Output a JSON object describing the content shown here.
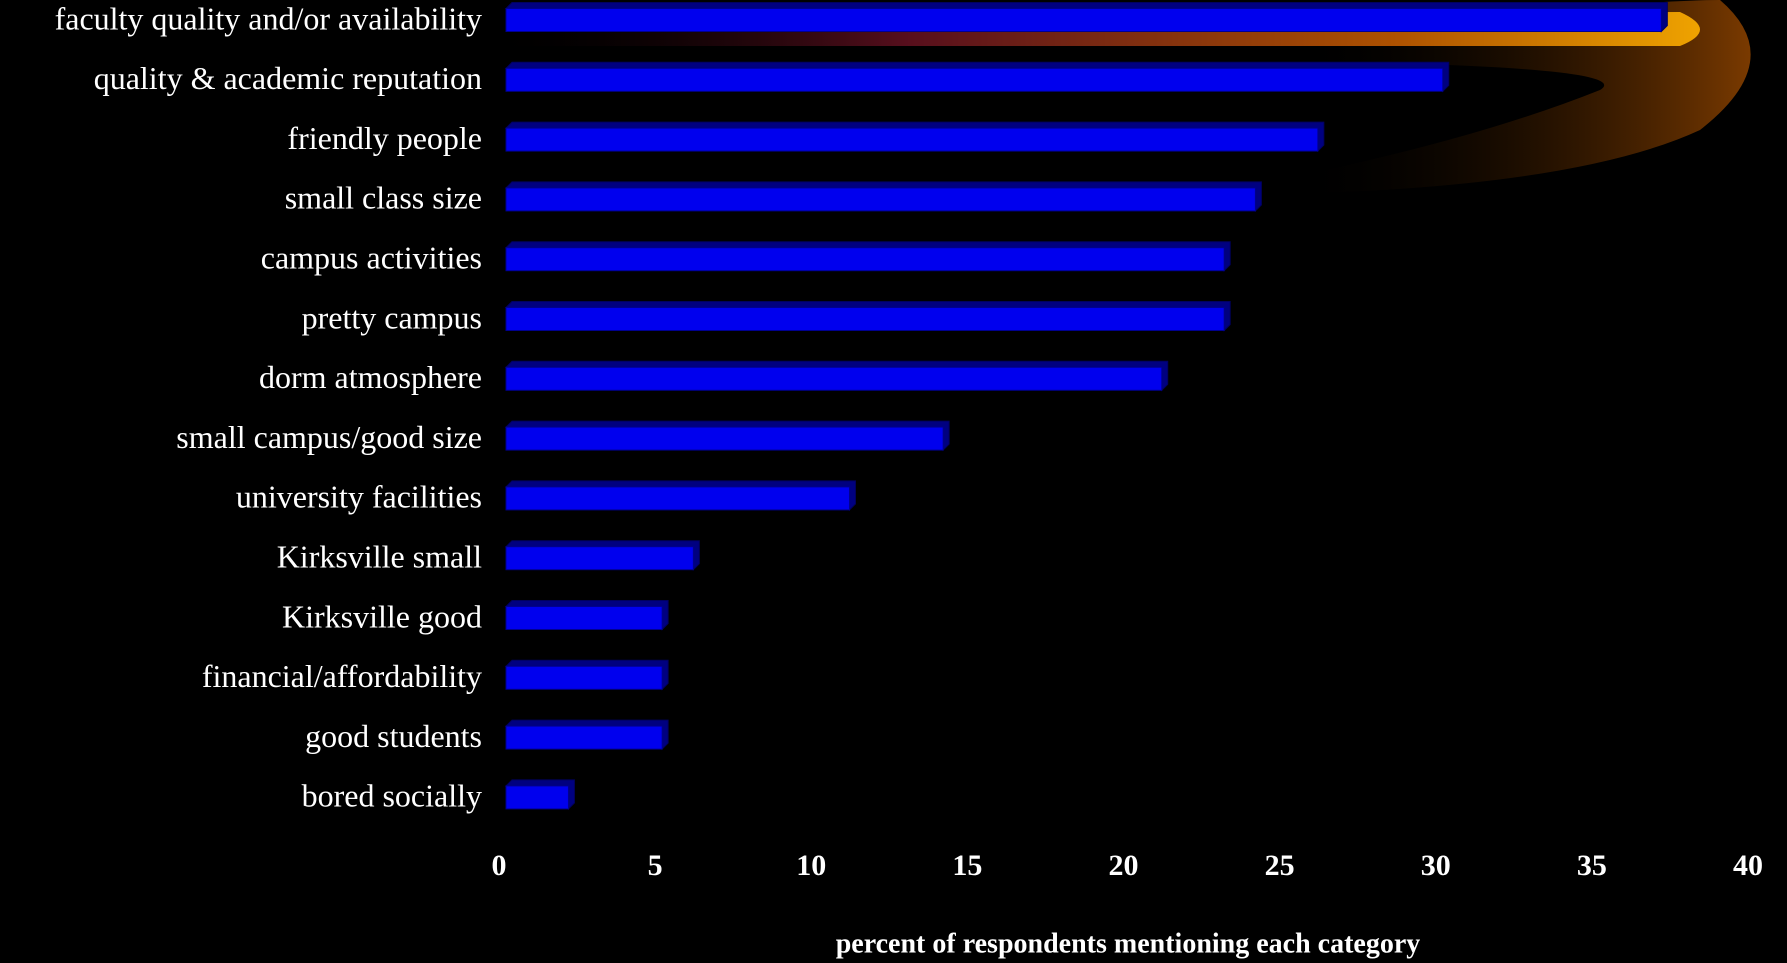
{
  "chart_data": {
    "type": "barh",
    "categories": [
      "faculty quality and/or availability",
      "quality & academic reputation",
      "friendly people",
      "small class size",
      "campus activities",
      "pretty campus",
      "dorm atmosphere",
      "small campus/good size",
      "university facilities",
      "Kirksville small",
      "Kirksville good",
      "financial/affordability",
      "good students",
      "bored socially"
    ],
    "values": [
      37,
      30,
      26,
      24,
      23,
      23,
      21,
      14,
      11,
      6,
      5,
      5,
      5,
      2
    ],
    "color": "#0000ee",
    "xlim": [
      0,
      40
    ],
    "xticks": [
      0,
      5,
      10,
      15,
      20,
      25,
      30,
      35,
      40
    ],
    "x_label": "percent of respondents mentioning each category",
    "grid": false
  }
}
